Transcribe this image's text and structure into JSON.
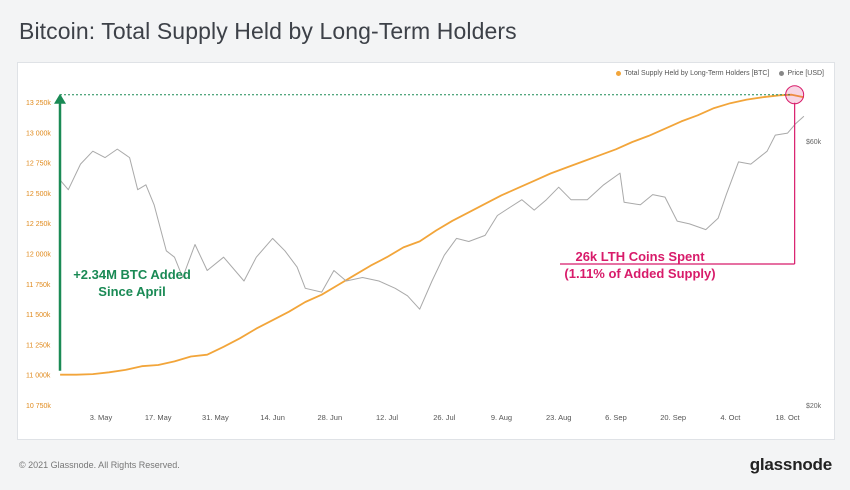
{
  "title": "Bitcoin: Total Supply Held by Long-Term Holders",
  "footer": "© 2021 Glassnode. All Rights Reserved.",
  "logo": "glassnode",
  "legend": {
    "lth": "Total Supply Held by Long-Term Holders [BTC]",
    "price": "Price [USD]"
  },
  "colors": {
    "lth": "#f2a53a",
    "price": "#a9a9a9",
    "green": "#1a8a55",
    "pink": "#d81b6a"
  },
  "annotations": {
    "added_line1": "+2.34M BTC Added",
    "added_line2": "Since April",
    "spent_line1": "26k LTH Coins Spent",
    "spent_line2": "(1.11% of Added Supply)"
  },
  "chart_data": {
    "type": "line",
    "title": "Bitcoin: Total Supply Held by Long-Term Holders",
    "x_ticks": [
      "3. May",
      "17. May",
      "31. May",
      "14. Jun",
      "28. Jun",
      "12. Jul",
      "26. Jul",
      "9. Aug",
      "23. Aug",
      "6. Sep",
      "20. Sep",
      "4. Oct",
      "18. Oct"
    ],
    "y_left": {
      "ticks": [
        "10 750k",
        "11 000k",
        "11 250k",
        "11 500k",
        "11 750k",
        "12 000k",
        "12 250k",
        "12 500k",
        "12 750k",
        "13 000k",
        "13 250k"
      ],
      "range": [
        10750,
        13300
      ]
    },
    "y_right": {
      "ticks": [
        "$20k",
        "$60k"
      ],
      "scale": "log"
    },
    "series": [
      {
        "name": "Total Supply Held by Long-Term Holders [BTC]",
        "axis": "left",
        "unit": "thousand BTC",
        "points": [
          [
            "2021-04-23",
            11000
          ],
          [
            "2021-04-27",
            11000
          ],
          [
            "2021-05-01",
            11005
          ],
          [
            "2021-05-05",
            11020
          ],
          [
            "2021-05-09",
            11040
          ],
          [
            "2021-05-13",
            11070
          ],
          [
            "2021-05-17",
            11080
          ],
          [
            "2021-05-21",
            11110
          ],
          [
            "2021-05-25",
            11150
          ],
          [
            "2021-05-29",
            11165
          ],
          [
            "2021-06-02",
            11230
          ],
          [
            "2021-06-06",
            11300
          ],
          [
            "2021-06-10",
            11380
          ],
          [
            "2021-06-14",
            11450
          ],
          [
            "2021-06-18",
            11520
          ],
          [
            "2021-06-22",
            11600
          ],
          [
            "2021-06-26",
            11660
          ],
          [
            "2021-06-30",
            11740
          ],
          [
            "2021-07-04",
            11820
          ],
          [
            "2021-07-08",
            11900
          ],
          [
            "2021-07-12",
            11970
          ],
          [
            "2021-07-16",
            12050
          ],
          [
            "2021-07-20",
            12100
          ],
          [
            "2021-07-24",
            12190
          ],
          [
            "2021-07-28",
            12270
          ],
          [
            "2021-08-01",
            12340
          ],
          [
            "2021-08-05",
            12410
          ],
          [
            "2021-08-09",
            12480
          ],
          [
            "2021-08-13",
            12540
          ],
          [
            "2021-08-17",
            12600
          ],
          [
            "2021-08-21",
            12660
          ],
          [
            "2021-08-25",
            12710
          ],
          [
            "2021-08-29",
            12760
          ],
          [
            "2021-09-02",
            12810
          ],
          [
            "2021-09-06",
            12860
          ],
          [
            "2021-09-10",
            12920
          ],
          [
            "2021-09-14",
            12970
          ],
          [
            "2021-09-18",
            13030
          ],
          [
            "2021-09-22",
            13090
          ],
          [
            "2021-09-26",
            13140
          ],
          [
            "2021-09-30",
            13200
          ],
          [
            "2021-10-04",
            13240
          ],
          [
            "2021-10-08",
            13270
          ],
          [
            "2021-10-12",
            13290
          ],
          [
            "2021-10-16",
            13305
          ],
          [
            "2021-10-19",
            13310
          ],
          [
            "2021-10-22",
            13290
          ]
        ]
      },
      {
        "name": "Price [USD]",
        "axis": "right",
        "unit": "USD",
        "points": [
          [
            "2021-04-23",
            51000
          ],
          [
            "2021-04-25",
            49000
          ],
          [
            "2021-04-28",
            54500
          ],
          [
            "2021-05-01",
            57500
          ],
          [
            "2021-05-04",
            56000
          ],
          [
            "2021-05-07",
            58000
          ],
          [
            "2021-05-10",
            56000
          ],
          [
            "2021-05-12",
            49000
          ],
          [
            "2021-05-14",
            50000
          ],
          [
            "2021-05-16",
            46000
          ],
          [
            "2021-05-19",
            38000
          ],
          [
            "2021-05-21",
            37000
          ],
          [
            "2021-05-23",
            34000
          ],
          [
            "2021-05-26",
            39000
          ],
          [
            "2021-05-29",
            35000
          ],
          [
            "2021-06-02",
            37000
          ],
          [
            "2021-06-07",
            33500
          ],
          [
            "2021-06-10",
            37000
          ],
          [
            "2021-06-14",
            40000
          ],
          [
            "2021-06-17",
            38000
          ],
          [
            "2021-06-20",
            35500
          ],
          [
            "2021-06-22",
            32500
          ],
          [
            "2021-06-26",
            32000
          ],
          [
            "2021-06-29",
            35000
          ],
          [
            "2021-07-02",
            33500
          ],
          [
            "2021-07-06",
            34000
          ],
          [
            "2021-07-10",
            33500
          ],
          [
            "2021-07-14",
            32500
          ],
          [
            "2021-07-17",
            31500
          ],
          [
            "2021-07-20",
            29800
          ],
          [
            "2021-07-23",
            33500
          ],
          [
            "2021-07-26",
            37300
          ],
          [
            "2021-07-29",
            40000
          ],
          [
            "2021-08-01",
            39500
          ],
          [
            "2021-08-05",
            40500
          ],
          [
            "2021-08-08",
            44000
          ],
          [
            "2021-08-11",
            45500
          ],
          [
            "2021-08-14",
            47000
          ],
          [
            "2021-08-17",
            45000
          ],
          [
            "2021-08-20",
            47000
          ],
          [
            "2021-08-23",
            49500
          ],
          [
            "2021-08-26",
            47000
          ],
          [
            "2021-08-30",
            47000
          ],
          [
            "2021-09-03",
            50000
          ],
          [
            "2021-09-07",
            52500
          ],
          [
            "2021-09-08",
            46500
          ],
          [
            "2021-09-12",
            46000
          ],
          [
            "2021-09-15",
            48000
          ],
          [
            "2021-09-18",
            47500
          ],
          [
            "2021-09-21",
            43000
          ],
          [
            "2021-09-24",
            42500
          ],
          [
            "2021-09-28",
            41500
          ],
          [
            "2021-10-01",
            43500
          ],
          [
            "2021-10-03",
            48000
          ],
          [
            "2021-10-06",
            55000
          ],
          [
            "2021-10-09",
            54500
          ],
          [
            "2021-10-13",
            57500
          ],
          [
            "2021-10-15",
            61500
          ],
          [
            "2021-10-18",
            62000
          ],
          [
            "2021-10-20",
            64500
          ],
          [
            "2021-10-22",
            66500
          ]
        ]
      }
    ],
    "legend_position": "top-right",
    "grid": false
  }
}
